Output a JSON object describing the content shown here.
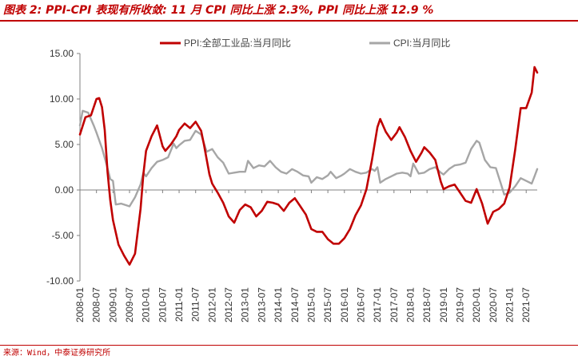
{
  "title": "图表 2:  PPI-CPI 表现有所收敛:  11 月 CPI 同比上涨 2.3%,  PPI 同比上涨 12.9 %",
  "source": "来源：Wind，中泰证券研究所",
  "colors": {
    "accent": "#c00000",
    "ppi": "#c00000",
    "cpi": "#a6a6a6",
    "axis": "#808080"
  },
  "chart_data": {
    "type": "line",
    "title": "",
    "xlabel": "",
    "ylabel": "",
    "ylim": [
      -10,
      15
    ],
    "yticks": [
      "15.00",
      "10.00",
      "5.00",
      "0.00",
      "-5.00",
      "-10.00"
    ],
    "ytick_values": [
      15,
      10,
      5,
      0,
      -5,
      -10
    ],
    "xticks": [
      "2008-01",
      "2008-07",
      "2009-01",
      "2009-07",
      "2010-01",
      "2010-07",
      "2011-01",
      "2011-07",
      "2012-01",
      "2012-07",
      "2013-01",
      "2013-07",
      "2014-01",
      "2014-07",
      "2015-01",
      "2015-07",
      "2016-01",
      "2016-07",
      "2017-01",
      "2017-07",
      "2018-01",
      "2018-07",
      "2019-01",
      "2019-07",
      "2020-01",
      "2020-07",
      "2021-01",
      "2021-07"
    ],
    "x_range": [
      "2008-01",
      "2021-11"
    ],
    "legend_position": "top",
    "series": [
      {
        "name": "PPI:全部工业品:当月同比",
        "color": "#c00000",
        "points": [
          [
            "2008-01",
            6.1
          ],
          [
            "2008-03",
            8.0
          ],
          [
            "2008-05",
            8.2
          ],
          [
            "2008-07",
            10.0
          ],
          [
            "2008-08",
            10.1
          ],
          [
            "2008-09",
            9.1
          ],
          [
            "2008-10",
            6.6
          ],
          [
            "2008-11",
            2.0
          ],
          [
            "2008-12",
            -1.1
          ],
          [
            "2009-01",
            -3.3
          ],
          [
            "2009-03",
            -6.0
          ],
          [
            "2009-05",
            -7.2
          ],
          [
            "2009-07",
            -8.2
          ],
          [
            "2009-09",
            -7.0
          ],
          [
            "2009-11",
            -2.1
          ],
          [
            "2009-12",
            1.7
          ],
          [
            "2010-01",
            4.3
          ],
          [
            "2010-03",
            5.9
          ],
          [
            "2010-05",
            7.1
          ],
          [
            "2010-07",
            4.8
          ],
          [
            "2010-08",
            4.3
          ],
          [
            "2010-10",
            5.0
          ],
          [
            "2010-12",
            5.9
          ],
          [
            "2011-01",
            6.6
          ],
          [
            "2011-03",
            7.3
          ],
          [
            "2011-05",
            6.8
          ],
          [
            "2011-07",
            7.5
          ],
          [
            "2011-09",
            6.5
          ],
          [
            "2011-10",
            5.0
          ],
          [
            "2011-12",
            1.7
          ],
          [
            "2012-01",
            0.7
          ],
          [
            "2012-03",
            -0.3
          ],
          [
            "2012-05",
            -1.4
          ],
          [
            "2012-07",
            -2.9
          ],
          [
            "2012-09",
            -3.6
          ],
          [
            "2012-11",
            -2.2
          ],
          [
            "2013-01",
            -1.6
          ],
          [
            "2013-03",
            -1.9
          ],
          [
            "2013-05",
            -2.9
          ],
          [
            "2013-07",
            -2.3
          ],
          [
            "2013-09",
            -1.3
          ],
          [
            "2013-11",
            -1.4
          ],
          [
            "2014-01",
            -1.6
          ],
          [
            "2014-03",
            -2.3
          ],
          [
            "2014-05",
            -1.4
          ],
          [
            "2014-07",
            -0.9
          ],
          [
            "2014-09",
            -1.8
          ],
          [
            "2014-11",
            -2.7
          ],
          [
            "2015-01",
            -4.3
          ],
          [
            "2015-03",
            -4.6
          ],
          [
            "2015-05",
            -4.6
          ],
          [
            "2015-07",
            -5.4
          ],
          [
            "2015-09",
            -5.9
          ],
          [
            "2015-11",
            -5.9
          ],
          [
            "2016-01",
            -5.3
          ],
          [
            "2016-03",
            -4.3
          ],
          [
            "2016-05",
            -2.8
          ],
          [
            "2016-07",
            -1.7
          ],
          [
            "2016-09",
            0.1
          ],
          [
            "2016-11",
            3.3
          ],
          [
            "2017-01",
            6.9
          ],
          [
            "2017-02",
            7.8
          ],
          [
            "2017-04",
            6.4
          ],
          [
            "2017-06",
            5.5
          ],
          [
            "2017-08",
            6.3
          ],
          [
            "2017-09",
            6.9
          ],
          [
            "2017-11",
            5.8
          ],
          [
            "2018-01",
            4.3
          ],
          [
            "2018-03",
            3.1
          ],
          [
            "2018-05",
            4.1
          ],
          [
            "2018-06",
            4.7
          ],
          [
            "2018-08",
            4.1
          ],
          [
            "2018-10",
            3.3
          ],
          [
            "2018-12",
            0.9
          ],
          [
            "2019-01",
            0.1
          ],
          [
            "2019-03",
            0.4
          ],
          [
            "2019-05",
            0.6
          ],
          [
            "2019-07",
            -0.3
          ],
          [
            "2019-09",
            -1.2
          ],
          [
            "2019-11",
            -1.4
          ],
          [
            "2020-01",
            0.1
          ],
          [
            "2020-03",
            -1.5
          ],
          [
            "2020-05",
            -3.7
          ],
          [
            "2020-07",
            -2.4
          ],
          [
            "2020-09",
            -2.1
          ],
          [
            "2020-11",
            -1.5
          ],
          [
            "2021-01",
            0.3
          ],
          [
            "2021-03",
            4.4
          ],
          [
            "2021-05",
            9.0
          ],
          [
            "2021-07",
            9.0
          ],
          [
            "2021-09",
            10.7
          ],
          [
            "2021-10",
            13.5
          ],
          [
            "2021-11",
            12.9
          ]
        ]
      },
      {
        "name": "CPI:当月同比",
        "color": "#a6a6a6",
        "points": [
          [
            "2008-01",
            7.1
          ],
          [
            "2008-02",
            8.7
          ],
          [
            "2008-04",
            8.5
          ],
          [
            "2008-06",
            7.1
          ],
          [
            "2008-07",
            6.3
          ],
          [
            "2008-09",
            4.6
          ],
          [
            "2008-11",
            2.4
          ],
          [
            "2008-12",
            1.2
          ],
          [
            "2009-01",
            1.0
          ],
          [
            "2009-02",
            -1.6
          ],
          [
            "2009-04",
            -1.5
          ],
          [
            "2009-06",
            -1.7
          ],
          [
            "2009-07",
            -1.8
          ],
          [
            "2009-09",
            -0.8
          ],
          [
            "2009-11",
            0.6
          ],
          [
            "2009-12",
            1.9
          ],
          [
            "2010-01",
            1.5
          ],
          [
            "2010-03",
            2.4
          ],
          [
            "2010-05",
            3.1
          ],
          [
            "2010-07",
            3.3
          ],
          [
            "2010-09",
            3.6
          ],
          [
            "2010-11",
            5.1
          ],
          [
            "2010-12",
            4.6
          ],
          [
            "2011-01",
            4.9
          ],
          [
            "2011-03",
            5.4
          ],
          [
            "2011-05",
            5.5
          ],
          [
            "2011-07",
            6.5
          ],
          [
            "2011-09",
            6.1
          ],
          [
            "2011-11",
            4.2
          ],
          [
            "2012-01",
            4.5
          ],
          [
            "2012-03",
            3.6
          ],
          [
            "2012-05",
            3.0
          ],
          [
            "2012-07",
            1.8
          ],
          [
            "2012-09",
            1.9
          ],
          [
            "2012-11",
            2.0
          ],
          [
            "2013-01",
            2.0
          ],
          [
            "2013-02",
            3.2
          ],
          [
            "2013-04",
            2.4
          ],
          [
            "2013-06",
            2.7
          ],
          [
            "2013-08",
            2.6
          ],
          [
            "2013-10",
            3.2
          ],
          [
            "2013-12",
            2.5
          ],
          [
            "2014-02",
            2.0
          ],
          [
            "2014-04",
            1.8
          ],
          [
            "2014-06",
            2.3
          ],
          [
            "2014-08",
            2.0
          ],
          [
            "2014-10",
            1.6
          ],
          [
            "2014-12",
            1.5
          ],
          [
            "2015-01",
            0.8
          ],
          [
            "2015-03",
            1.4
          ],
          [
            "2015-05",
            1.2
          ],
          [
            "2015-07",
            1.6
          ],
          [
            "2015-08",
            2.0
          ],
          [
            "2015-10",
            1.3
          ],
          [
            "2015-12",
            1.6
          ],
          [
            "2016-01",
            1.8
          ],
          [
            "2016-03",
            2.3
          ],
          [
            "2016-05",
            2.0
          ],
          [
            "2016-07",
            1.8
          ],
          [
            "2016-09",
            1.9
          ],
          [
            "2016-11",
            2.3
          ],
          [
            "2016-12",
            2.1
          ],
          [
            "2017-01",
            2.5
          ],
          [
            "2017-02",
            0.8
          ],
          [
            "2017-04",
            1.2
          ],
          [
            "2017-06",
            1.5
          ],
          [
            "2017-08",
            1.8
          ],
          [
            "2017-10",
            1.9
          ],
          [
            "2017-12",
            1.8
          ],
          [
            "2018-01",
            1.5
          ],
          [
            "2018-02",
            2.9
          ],
          [
            "2018-04",
            1.8
          ],
          [
            "2018-06",
            1.9
          ],
          [
            "2018-08",
            2.3
          ],
          [
            "2018-10",
            2.5
          ],
          [
            "2018-12",
            1.9
          ],
          [
            "2019-01",
            1.7
          ],
          [
            "2019-03",
            2.3
          ],
          [
            "2019-05",
            2.7
          ],
          [
            "2019-07",
            2.8
          ],
          [
            "2019-09",
            3.0
          ],
          [
            "2019-11",
            4.5
          ],
          [
            "2020-01",
            5.4
          ],
          [
            "2020-02",
            5.2
          ],
          [
            "2020-04",
            3.3
          ],
          [
            "2020-06",
            2.5
          ],
          [
            "2020-08",
            2.4
          ],
          [
            "2020-10",
            0.5
          ],
          [
            "2020-11",
            -0.5
          ],
          [
            "2021-01",
            -0.3
          ],
          [
            "2021-03",
            0.4
          ],
          [
            "2021-05",
            1.3
          ],
          [
            "2021-07",
            1.0
          ],
          [
            "2021-09",
            0.7
          ],
          [
            "2021-10",
            1.5
          ],
          [
            "2021-11",
            2.3
          ]
        ]
      }
    ]
  }
}
